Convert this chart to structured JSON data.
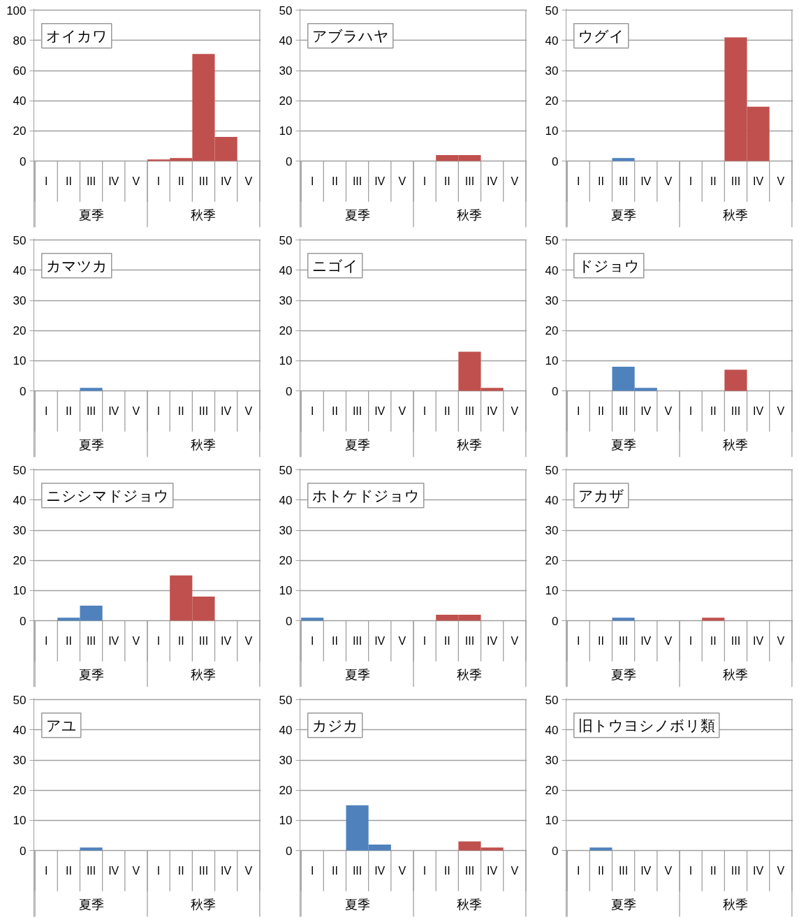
{
  "chart_data": [
    {
      "type": "bar",
      "title": "オイカワ",
      "categories": [
        "I",
        "II",
        "III",
        "IV",
        "V",
        "I",
        "II",
        "III",
        "IV",
        "V"
      ],
      "annotations": [
        "夏季",
        "秋季"
      ],
      "ylim": [
        0,
        100
      ],
      "yticks": [
        0,
        20,
        40,
        60,
        80,
        100
      ],
      "grid": "y",
      "series": [
        {
          "color": "#c0504d",
          "values": [
            null,
            null,
            null,
            null,
            null,
            1,
            2,
            71,
            16,
            0
          ]
        }
      ]
    },
    {
      "type": "bar",
      "title": "アブラハヤ",
      "categories": [
        "I",
        "II",
        "III",
        "IV",
        "V",
        "I",
        "II",
        "III",
        "IV",
        "V"
      ],
      "annotations": [
        "夏季",
        "秋季"
      ],
      "ylim": [
        0,
        50
      ],
      "yticks": [
        0,
        10,
        20,
        30,
        40,
        50
      ],
      "grid": "y",
      "series": [
        {
          "color": "#c0504d",
          "values": [
            null,
            null,
            null,
            null,
            null,
            0,
            2,
            2,
            0,
            0
          ]
        }
      ]
    },
    {
      "type": "bar",
      "title": "ウグイ",
      "categories": [
        "I",
        "II",
        "III",
        "IV",
        "V",
        "I",
        "II",
        "III",
        "IV",
        "V"
      ],
      "annotations": [
        "夏季",
        "秋季"
      ],
      "ylim": [
        0,
        50
      ],
      "yticks": [
        0,
        10,
        20,
        30,
        40,
        50
      ],
      "grid": "y",
      "series": [
        {
          "color": "#4f81bd",
          "values": [
            0,
            0,
            1,
            0,
            0,
            null,
            null,
            null,
            null,
            null
          ]
        },
        {
          "color": "#c0504d",
          "values": [
            null,
            null,
            null,
            null,
            null,
            0,
            0,
            41,
            18,
            0
          ]
        }
      ]
    },
    {
      "type": "bar",
      "title": "カマツカ",
      "categories": [
        "I",
        "II",
        "III",
        "IV",
        "V",
        "I",
        "II",
        "III",
        "IV",
        "V"
      ],
      "annotations": [
        "夏季",
        "秋季"
      ],
      "ylim": [
        0,
        50
      ],
      "yticks": [
        0,
        10,
        20,
        30,
        40,
        50
      ],
      "grid": "y",
      "series": [
        {
          "color": "#4f81bd",
          "values": [
            0,
            0,
            1,
            0,
            0,
            null,
            null,
            null,
            null,
            null
          ]
        }
      ]
    },
    {
      "type": "bar",
      "title": "ニゴイ",
      "categories": [
        "I",
        "II",
        "III",
        "IV",
        "V",
        "I",
        "II",
        "III",
        "IV",
        "V"
      ],
      "annotations": [
        "夏季",
        "秋季"
      ],
      "ylim": [
        0,
        50
      ],
      "yticks": [
        0,
        10,
        20,
        30,
        40,
        50
      ],
      "grid": "y",
      "series": [
        {
          "color": "#c0504d",
          "values": [
            null,
            null,
            null,
            null,
            null,
            0,
            0,
            13,
            1,
            0
          ]
        }
      ]
    },
    {
      "type": "bar",
      "title": "ドジョウ",
      "categories": [
        "I",
        "II",
        "III",
        "IV",
        "V",
        "I",
        "II",
        "III",
        "IV",
        "V"
      ],
      "annotations": [
        "夏季",
        "秋季"
      ],
      "ylim": [
        0,
        50
      ],
      "yticks": [
        0,
        10,
        20,
        30,
        40,
        50
      ],
      "grid": "y",
      "series": [
        {
          "color": "#4f81bd",
          "values": [
            0,
            0,
            8,
            1,
            0,
            null,
            null,
            null,
            null,
            null
          ]
        },
        {
          "color": "#c0504d",
          "values": [
            null,
            null,
            null,
            null,
            null,
            0,
            0,
            7,
            0,
            0
          ]
        }
      ]
    },
    {
      "type": "bar",
      "title": "ニシシマドジョウ",
      "categories": [
        "I",
        "II",
        "III",
        "IV",
        "V",
        "I",
        "II",
        "III",
        "IV",
        "V"
      ],
      "annotations": [
        "夏季",
        "秋季"
      ],
      "ylim": [
        0,
        50
      ],
      "yticks": [
        0,
        10,
        20,
        30,
        40,
        50
      ],
      "grid": "y",
      "series": [
        {
          "color": "#4f81bd",
          "values": [
            0,
            1,
            5,
            0,
            0,
            null,
            null,
            null,
            null,
            null
          ]
        },
        {
          "color": "#c0504d",
          "values": [
            null,
            null,
            null,
            null,
            null,
            0,
            15,
            8,
            0,
            0
          ]
        }
      ]
    },
    {
      "type": "bar",
      "title": "ホトケドジョウ",
      "categories": [
        "I",
        "II",
        "III",
        "IV",
        "V",
        "I",
        "II",
        "III",
        "IV",
        "V"
      ],
      "annotations": [
        "夏季",
        "秋季"
      ],
      "ylim": [
        0,
        50
      ],
      "yticks": [
        0,
        10,
        20,
        30,
        40,
        50
      ],
      "grid": "y",
      "series": [
        {
          "color": "#4f81bd",
          "values": [
            1,
            0,
            0,
            0,
            0,
            null,
            null,
            null,
            null,
            null
          ]
        },
        {
          "color": "#c0504d",
          "values": [
            null,
            null,
            null,
            null,
            null,
            0,
            2,
            2,
            0,
            0
          ]
        }
      ]
    },
    {
      "type": "bar",
      "title": "アカザ",
      "categories": [
        "I",
        "II",
        "III",
        "IV",
        "V",
        "I",
        "II",
        "III",
        "IV",
        "V"
      ],
      "annotations": [
        "夏季",
        "秋季"
      ],
      "ylim": [
        0,
        50
      ],
      "yticks": [
        0,
        10,
        20,
        30,
        40,
        50
      ],
      "grid": "y",
      "series": [
        {
          "color": "#4f81bd",
          "values": [
            0,
            0,
            1,
            0,
            0,
            null,
            null,
            null,
            null,
            null
          ]
        },
        {
          "color": "#c0504d",
          "values": [
            null,
            null,
            null,
            null,
            null,
            0,
            1,
            0,
            0,
            0
          ]
        }
      ]
    },
    {
      "type": "bar",
      "title": "アユ",
      "categories": [
        "I",
        "II",
        "III",
        "IV",
        "V",
        "I",
        "II",
        "III",
        "IV",
        "V"
      ],
      "annotations": [
        "夏季",
        "秋季"
      ],
      "ylim": [
        0,
        50
      ],
      "yticks": [
        0,
        10,
        20,
        30,
        40,
        50
      ],
      "grid": "y",
      "series": [
        {
          "color": "#4f81bd",
          "values": [
            0,
            0,
            1,
            0,
            0,
            null,
            null,
            null,
            null,
            null
          ]
        }
      ]
    },
    {
      "type": "bar",
      "title": "カジカ",
      "categories": [
        "I",
        "II",
        "III",
        "IV",
        "V",
        "I",
        "II",
        "III",
        "IV",
        "V"
      ],
      "annotations": [
        "夏季",
        "秋季"
      ],
      "ylim": [
        0,
        50
      ],
      "yticks": [
        0,
        10,
        20,
        30,
        40,
        50
      ],
      "grid": "y",
      "series": [
        {
          "color": "#4f81bd",
          "values": [
            0,
            0,
            15,
            2,
            0,
            null,
            null,
            null,
            null,
            null
          ]
        },
        {
          "color": "#c0504d",
          "values": [
            null,
            null,
            null,
            null,
            null,
            0,
            0,
            3,
            1,
            0
          ]
        }
      ]
    },
    {
      "type": "bar",
      "title": "旧トウヨシノボリ類",
      "categories": [
        "I",
        "II",
        "III",
        "IV",
        "V",
        "I",
        "II",
        "III",
        "IV",
        "V"
      ],
      "annotations": [
        "夏季",
        "秋季"
      ],
      "ylim": [
        0,
        50
      ],
      "yticks": [
        0,
        10,
        20,
        30,
        40,
        50
      ],
      "grid": "y",
      "series": [
        {
          "color": "#4f81bd",
          "values": [
            0,
            1,
            0,
            0,
            0,
            null,
            null,
            null,
            null,
            null
          ]
        }
      ]
    }
  ]
}
